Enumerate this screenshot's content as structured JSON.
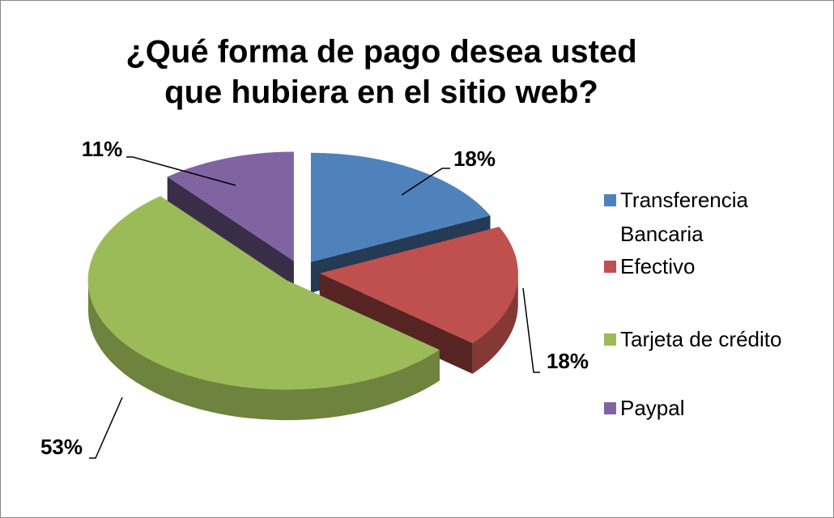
{
  "chart_data": {
    "type": "pie",
    "title": "¿Qué forma de pago desea usted que hubiera en el sitio web?",
    "categories": [
      "Transferencia Bancaria",
      "Efectivo",
      "Tarjeta de crédito",
      "Paypal"
    ],
    "values": [
      18,
      18,
      53,
      11
    ],
    "value_labels": [
      "18%",
      "18%",
      "53%",
      "11%"
    ],
    "colors": [
      "#4f81bd",
      "#c0504d",
      "#9bbb59",
      "#8064a2"
    ],
    "legend": "right"
  }
}
